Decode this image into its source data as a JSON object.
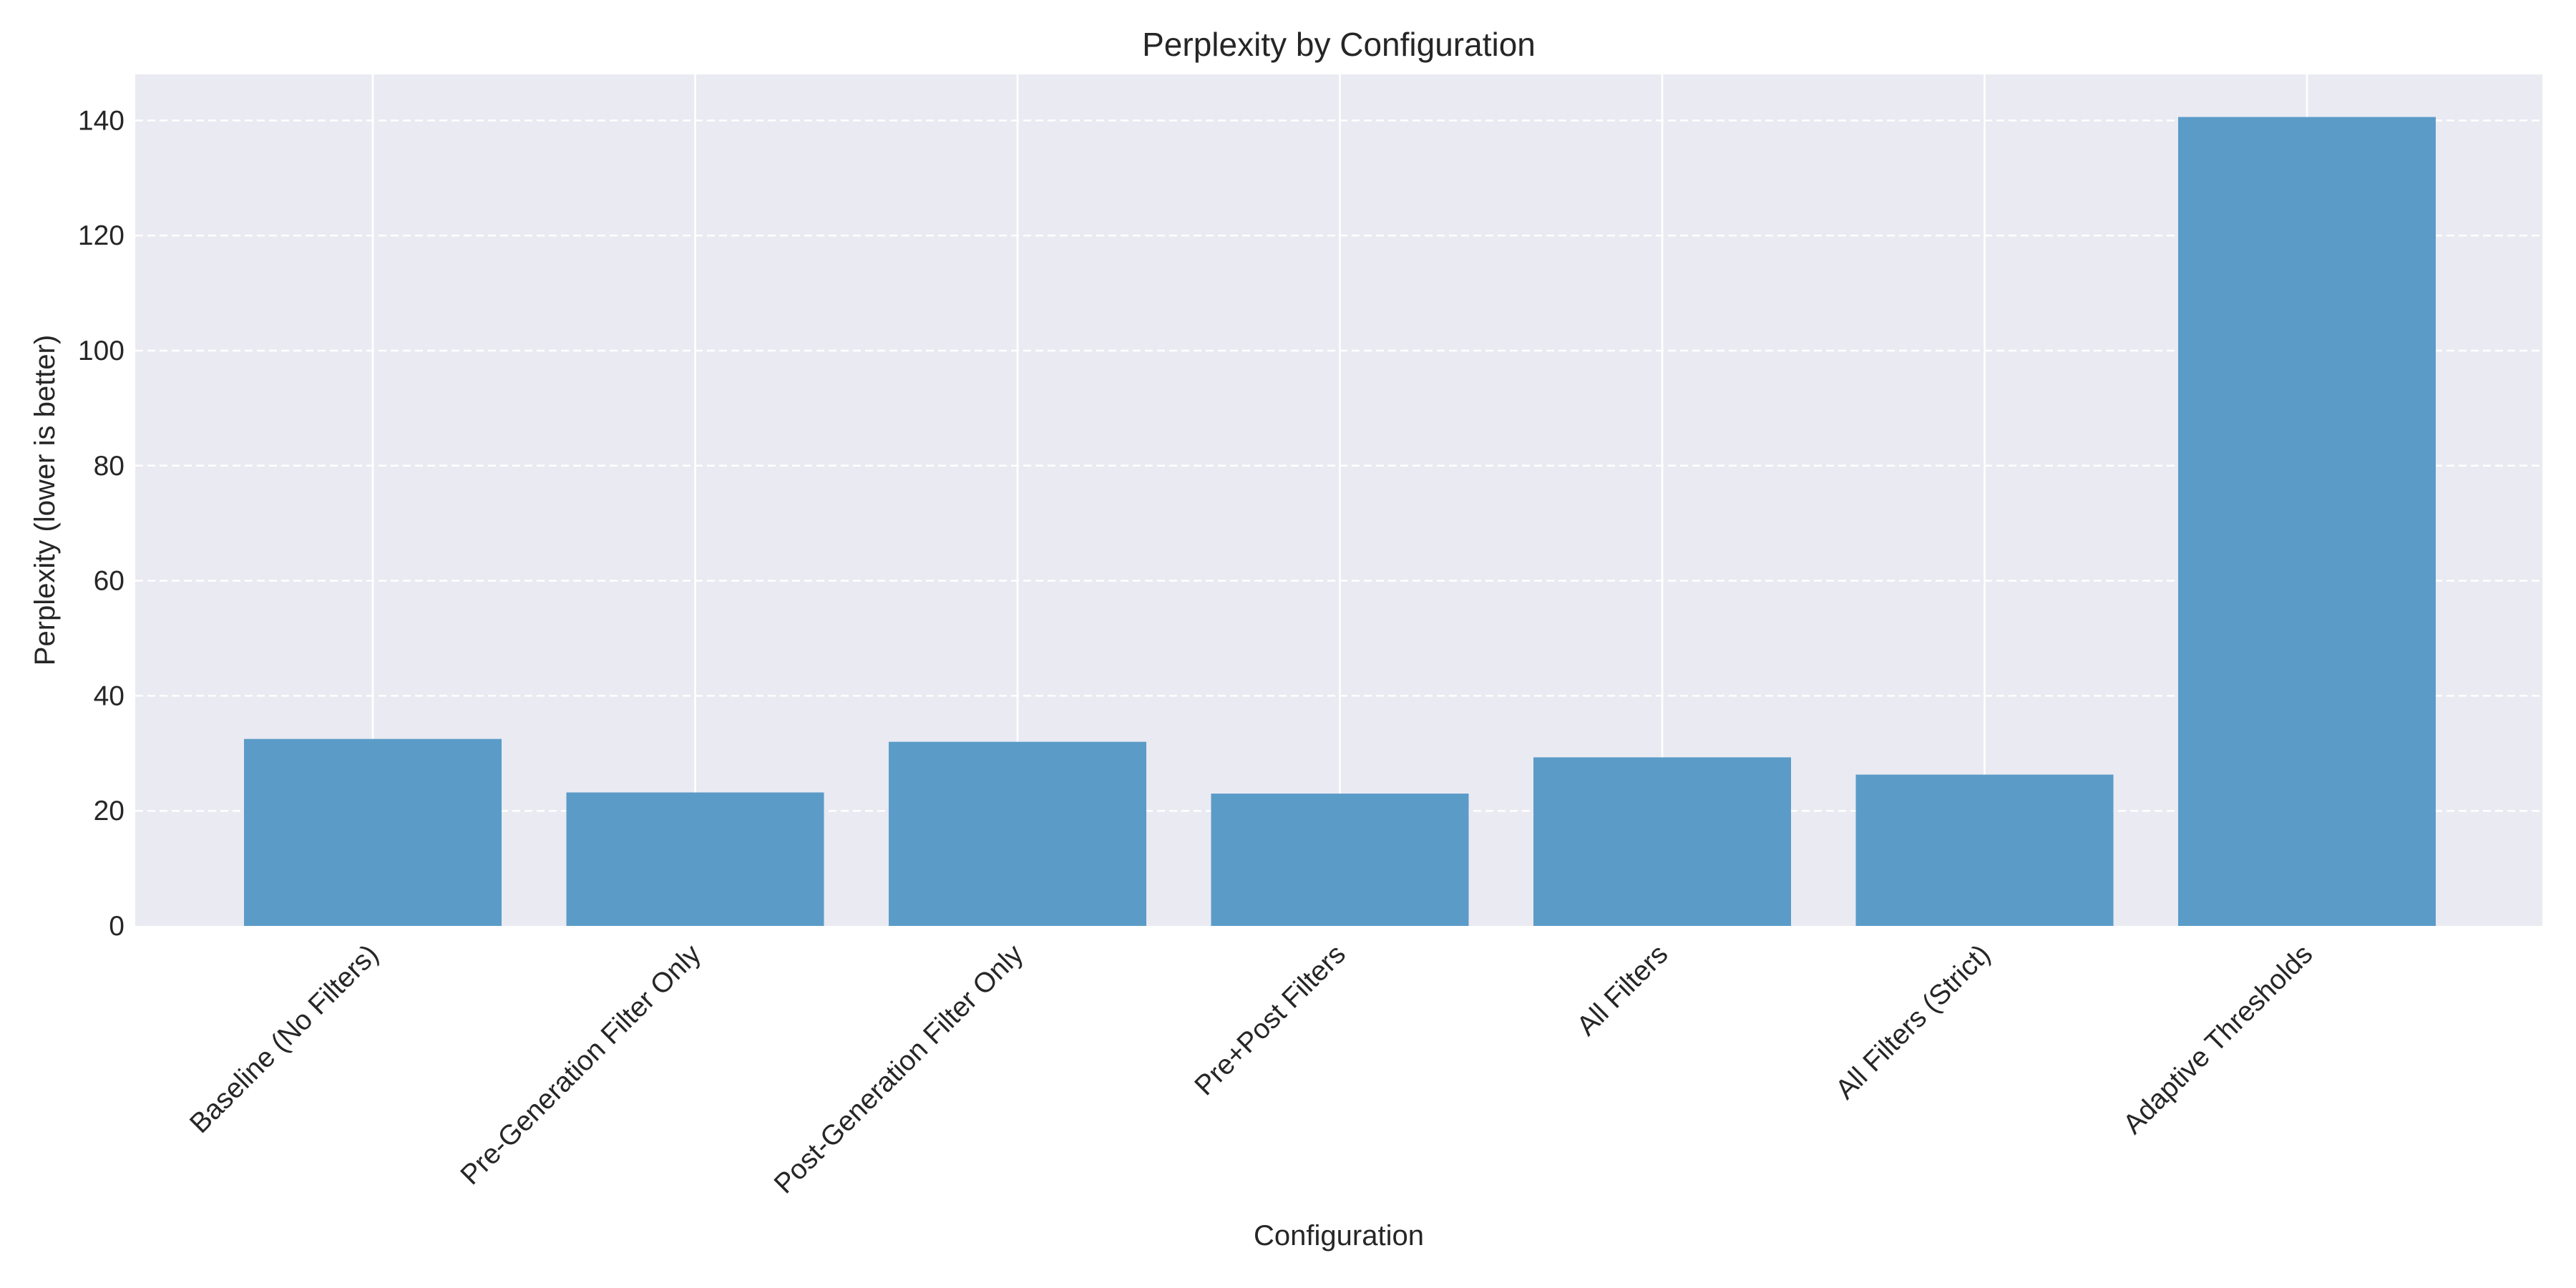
{
  "chart_data": {
    "type": "bar",
    "title": "Perplexity by Configuration",
    "xlabel": "Configuration",
    "ylabel": "Perplexity (lower is better)",
    "categories": [
      "Baseline (No Filters)",
      "Pre-Generation Filter Only",
      "Post-Generation Filter Only",
      "Pre+Post Filters",
      "All Filters",
      "All Filters (Strict)",
      "Adaptive Thresholds"
    ],
    "values": [
      32.5,
      23.2,
      32.0,
      23.0,
      29.3,
      26.3,
      140.6
    ],
    "ylim": [
      0,
      148
    ],
    "yticks": [
      0,
      20,
      40,
      60,
      80,
      100,
      120,
      140
    ],
    "ytick_labels": [
      "0",
      "20",
      "40",
      "60",
      "80",
      "100",
      "120",
      "140"
    ],
    "grid": {
      "y": "dashed",
      "x": "solid"
    },
    "legend": "none",
    "colors": {
      "bar": "#5b9bc8",
      "plot_background": "#eaeaf2",
      "grid": "#ffffff",
      "text": "#262626"
    }
  }
}
